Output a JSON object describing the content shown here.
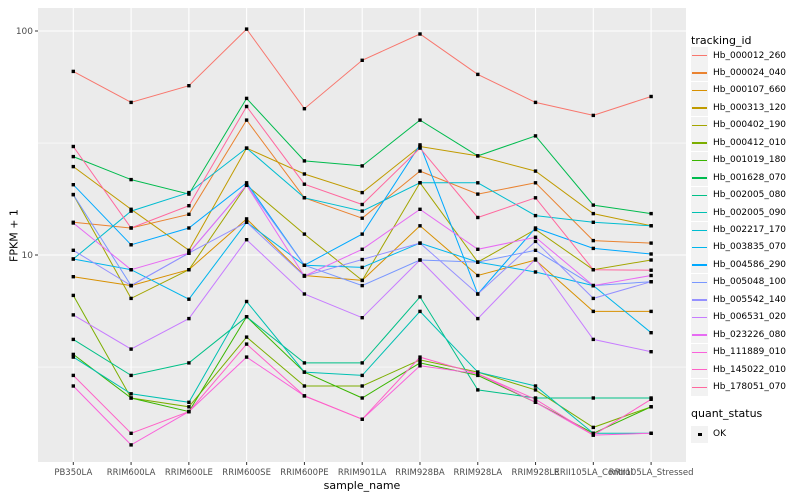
{
  "figure": {
    "y_axis_title": "FPKM + 1",
    "x_axis_title": "sample_name",
    "legend_title": "tracking_id",
    "quant_legend_title": "quant_status",
    "quant_ok_label": "OK",
    "colors": {
      "panel_bg": "#EBEBEB",
      "grid": "#FFFFFF",
      "tick_text": "#4D4D4D",
      "tick_mark": "#333333",
      "point": "#000000",
      "legend_key_bg": "#F2F2F2"
    }
  },
  "chart_data": {
    "type": "line",
    "title": "",
    "xlabel": "sample_name",
    "ylabel": "FPKM + 1",
    "y_scale": "log10",
    "ylim": [
      1.19,
      127
    ],
    "y_ticks": [
      100,
      10
    ],
    "y_minor_ticks": [
      31.6,
      3.16
    ],
    "grid": true,
    "legend_position": "right",
    "legend_title": "tracking_id",
    "quant_status_legend": {
      "title": "quant_status",
      "items": [
        "OK"
      ]
    },
    "point_shape": "filled-square",
    "categories": [
      "PB350LA",
      "RRIM600LA",
      "RRIM600LE",
      "RRIM600SE",
      "RRIM600PE",
      "RRIM901LA",
      "RRIM928BA",
      "RRIM928LA",
      "RRIM928LE",
      "RRII105LA_Control",
      "RRII105LA_Stressed"
    ],
    "series": [
      {
        "name": "Hb_000012_260",
        "color": "#F8766D",
        "values": [
          66,
          48,
          57,
          102,
          45,
          74,
          97,
          64,
          48,
          42,
          51
        ]
      },
      {
        "name": "Hb_000024_040",
        "color": "#EA8331",
        "values": [
          14,
          13.2,
          15.2,
          40,
          18,
          14.6,
          23.7,
          18.7,
          21,
          11.6,
          11.3
        ]
      },
      {
        "name": "Hb_000107_660",
        "color": "#D89000",
        "values": [
          8.0,
          7.3,
          8.6,
          14.5,
          8.1,
          7.7,
          13.5,
          8.1,
          9.5,
          5.6,
          5.6
        ]
      },
      {
        "name": "Hb_000313_120",
        "color": "#C09B00",
        "values": [
          24.8,
          16,
          10.5,
          30,
          23,
          19,
          30.5,
          27.7,
          23.7,
          15.3,
          13.5
        ]
      },
      {
        "name": "Hb_000402_190",
        "color": "#A3A500",
        "values": [
          18.6,
          6.4,
          8.6,
          20.5,
          12.4,
          7.7,
          21,
          9.3,
          13,
          8.6,
          9.5
        ]
      },
      {
        "name": "Hb_000412_010",
        "color": "#7CAE00",
        "values": [
          6.6,
          2.3,
          2.1,
          4.3,
          2.6,
          2.6,
          3.4,
          3.0,
          2.5,
          1.7,
          2.1
        ]
      },
      {
        "name": "Hb_001019_180",
        "color": "#39B600",
        "values": [
          3.6,
          2.3,
          2.0,
          5.3,
          3.0,
          2.3,
          3.3,
          2.9,
          2.2,
          1.6,
          2.1
        ]
      },
      {
        "name": "Hb_001628_070",
        "color": "#00BB4E",
        "values": [
          27.5,
          21.7,
          18.7,
          50,
          26.3,
          25,
          40,
          27.7,
          34,
          16.7,
          15.3
        ]
      },
      {
        "name": "Hb_002005_080",
        "color": "#00C087",
        "values": [
          4.2,
          2.9,
          3.3,
          5.3,
          3.3,
          3.3,
          6.5,
          2.5,
          2.3,
          2.3,
          2.3
        ]
      },
      {
        "name": "Hb_002005_090",
        "color": "#00C0B2",
        "values": [
          3.5,
          2.4,
          2.2,
          6.2,
          3.0,
          2.9,
          5.6,
          3.0,
          2.6,
          1.6,
          1.6
        ]
      },
      {
        "name": "Hb_002217_170",
        "color": "#00BDD0",
        "values": [
          9.6,
          15.7,
          19,
          30,
          18,
          15.7,
          21,
          21,
          15,
          14,
          13.5
        ]
      },
      {
        "name": "Hb_003835_070",
        "color": "#00B5EC",
        "values": [
          9.6,
          8.6,
          6.35,
          14,
          9.0,
          8.8,
          11.3,
          9.3,
          8.4,
          7.3,
          4.5
        ]
      },
      {
        "name": "Hb_004586_290",
        "color": "#00A9FF",
        "values": [
          20.6,
          11.1,
          13.2,
          21,
          9.0,
          12.4,
          31,
          6.7,
          13.2,
          10.7,
          10.1
        ]
      },
      {
        "name": "Hb_005048_100",
        "color": "#7997FF",
        "values": [
          18.6,
          7.3,
          10.2,
          20.5,
          9.0,
          7.3,
          9.5,
          9.3,
          10.5,
          7.3,
          7.6
        ]
      },
      {
        "name": "Hb_005542_140",
        "color": "#9590FF",
        "values": [
          10.5,
          7.3,
          10.2,
          14,
          8.05,
          9.55,
          11.3,
          6.7,
          11.5,
          6.4,
          7.6
        ]
      },
      {
        "name": "Hb_006531_020",
        "color": "#C77CFF",
        "values": [
          5.4,
          3.8,
          5.2,
          11.7,
          6.7,
          5.25,
          9.5,
          5.2,
          9.6,
          4.2,
          3.7
        ]
      },
      {
        "name": "Hb_023226_080",
        "color": "#E76BF3",
        "values": [
          13.9,
          8.6,
          10.2,
          20.5,
          8.05,
          10.6,
          16,
          10.6,
          12,
          7.3,
          8.1
        ]
      },
      {
        "name": "Hb_111889_010",
        "color": "#FA62DB",
        "values": [
          2.6,
          1.42,
          2.0,
          3.5,
          2.35,
          1.85,
          3.2,
          2.95,
          2.2,
          1.57,
          1.6
        ]
      },
      {
        "name": "Hb_145022_010",
        "color": "#FF61C7",
        "values": [
          2.9,
          1.6,
          2.0,
          4.0,
          2.35,
          1.85,
          3.5,
          2.95,
          2.27,
          1.57,
          2.27
        ]
      },
      {
        "name": "Hb_178051_070",
        "color": "#FF689E",
        "values": [
          30.5,
          13.2,
          16.6,
          46,
          20.7,
          16.8,
          30,
          14.7,
          18,
          8.6,
          8.55
        ]
      }
    ]
  }
}
